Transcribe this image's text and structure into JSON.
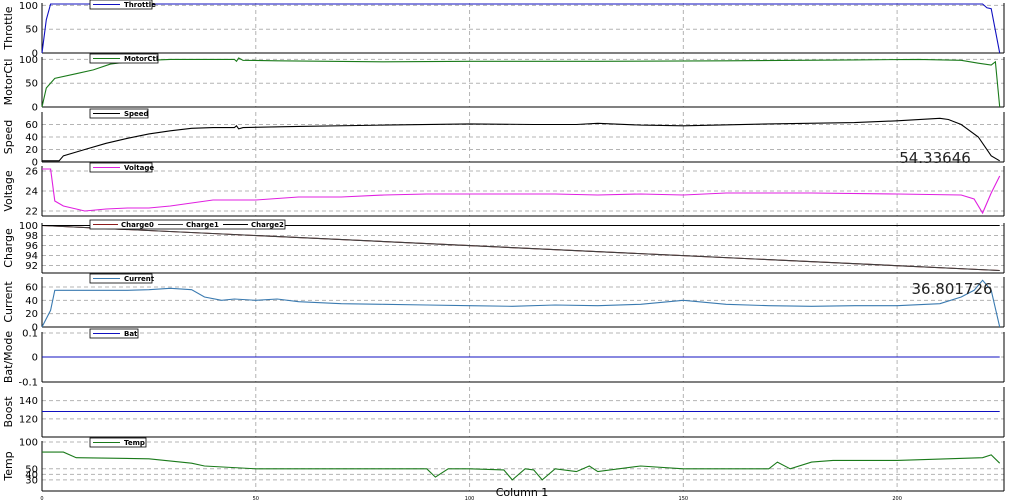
{
  "chart_data": {
    "type": "line",
    "xlabel": "Column 1",
    "xticks": [
      "0",
      "50",
      "100",
      "150",
      "200"
    ],
    "xlim": [
      0,
      225
    ],
    "panels": [
      {
        "ylabel": "Throttle",
        "ylim": [
          0,
          105
        ],
        "yticks": [
          0,
          50,
          100
        ],
        "series": [
          {
            "name": "Throttle",
            "color": "#1010c0",
            "points": [
              [
                0,
                0
              ],
              [
                1,
                70
              ],
              [
                2,
                103
              ],
              [
                20,
                103
              ],
              [
                50,
                103
              ],
              [
                100,
                103
              ],
              [
                150,
                103
              ],
              [
                200,
                103
              ],
              [
                220,
                103
              ],
              [
                221,
                95
              ],
              [
                222,
                93
              ],
              [
                224,
                0
              ]
            ]
          }
        ],
        "legend": [
          "Throttle"
        ]
      },
      {
        "ylabel": "MotorCtl",
        "ylim": [
          0,
          105
        ],
        "yticks": [
          0,
          50,
          100
        ],
        "series": [
          {
            "name": "MotorCtl",
            "color": "#1a7a1a",
            "points": [
              [
                0,
                0
              ],
              [
                1,
                40
              ],
              [
                3,
                60
              ],
              [
                8,
                70
              ],
              [
                12,
                78
              ],
              [
                16,
                90
              ],
              [
                20,
                95
              ],
              [
                25,
                98
              ],
              [
                30,
                100
              ],
              [
                40,
                100
              ],
              [
                45,
                100
              ],
              [
                45.5,
                96
              ],
              [
                46,
                103
              ],
              [
                47,
                98
              ],
              [
                55,
                97
              ],
              [
                80,
                95
              ],
              [
                100,
                96
              ],
              [
                130,
                96
              ],
              [
                160,
                97
              ],
              [
                190,
                99
              ],
              [
                205,
                100
              ],
              [
                215,
                98
              ],
              [
                219,
                92
              ],
              [
                222,
                88
              ],
              [
                223,
                95
              ],
              [
                224,
                0
              ]
            ]
          }
        ],
        "legend": [
          "MotorCtl"
        ]
      },
      {
        "ylabel": "Speed",
        "ylim": [
          0,
          80
        ],
        "yticks": [
          0,
          20,
          40,
          60
        ],
        "series": [
          {
            "name": "Speed",
            "color": "#000000",
            "points": [
              [
                0,
                2
              ],
              [
                4,
                2
              ],
              [
                5,
                10
              ],
              [
                10,
                20
              ],
              [
                15,
                30
              ],
              [
                20,
                38
              ],
              [
                25,
                45
              ],
              [
                30,
                50
              ],
              [
                35,
                54
              ],
              [
                40,
                55
              ],
              [
                45,
                55
              ],
              [
                45.5,
                58
              ],
              [
                46,
                53
              ],
              [
                47,
                55
              ],
              [
                60,
                57
              ],
              [
                80,
                59
              ],
              [
                100,
                61
              ],
              [
                115,
                60
              ],
              [
                125,
                60
              ],
              [
                130,
                62
              ],
              [
                140,
                59
              ],
              [
                150,
                58
              ],
              [
                170,
                61
              ],
              [
                190,
                63
              ],
              [
                200,
                66
              ],
              [
                210,
                70
              ],
              [
                212,
                68
              ],
              [
                215,
                60
              ],
              [
                219,
                40
              ],
              [
                222,
                10
              ],
              [
                224,
                2
              ]
            ]
          }
        ],
        "legend": [
          "Speed"
        ],
        "readout": "54.33646"
      },
      {
        "ylabel": "Voltage",
        "ylim": [
          21.5,
          26.5
        ],
        "yticks": [
          22,
          24,
          26
        ],
        "series": [
          {
            "name": "Voltage",
            "color": "#e020e0",
            "points": [
              [
                0,
                26.2
              ],
              [
                2,
                26.2
              ],
              [
                3,
                23
              ],
              [
                5,
                22.5
              ],
              [
                10,
                22.0
              ],
              [
                15,
                22.2
              ],
              [
                20,
                22.3
              ],
              [
                25,
                22.3
              ],
              [
                30,
                22.5
              ],
              [
                35,
                22.8
              ],
              [
                40,
                23.1
              ],
              [
                50,
                23.1
              ],
              [
                60,
                23.4
              ],
              [
                70,
                23.4
              ],
              [
                80,
                23.6
              ],
              [
                90,
                23.7
              ],
              [
                100,
                23.7
              ],
              [
                120,
                23.7
              ],
              [
                130,
                23.6
              ],
              [
                140,
                23.7
              ],
              [
                150,
                23.6
              ],
              [
                160,
                23.8
              ],
              [
                180,
                23.8
              ],
              [
                200,
                23.7
              ],
              [
                215,
                23.6
              ],
              [
                218,
                23.2
              ],
              [
                220,
                21.8
              ],
              [
                222,
                23.8
              ],
              [
                224,
                25.5
              ]
            ]
          }
        ],
        "legend": [
          "Voltage"
        ]
      },
      {
        "ylabel": "Charge",
        "ylim": [
          90.5,
          100.5
        ],
        "yticks": [
          92,
          94,
          96,
          98,
          100
        ],
        "series": [
          {
            "name": "Charge0",
            "color": "#8b1a1a",
            "points": [
              [
                0,
                100
              ],
              [
                224,
                91
              ]
            ]
          },
          {
            "name": "Charge1",
            "color": "#404040",
            "points": [
              [
                0,
                100
              ],
              [
                224,
                91
              ]
            ]
          },
          {
            "name": "Charge2",
            "color": "#000000",
            "points": [
              [
                0,
                100
              ],
              [
                224,
                100
              ]
            ]
          }
        ],
        "legend": [
          "Charge0",
          "Charge1",
          "Charge2"
        ]
      },
      {
        "ylabel": "Current",
        "ylim": [
          0,
          75
        ],
        "yticks": [
          0,
          20,
          40,
          60
        ],
        "series": [
          {
            "name": "Current",
            "color": "#3a7ab0",
            "points": [
              [
                0,
                0
              ],
              [
                2,
                25
              ],
              [
                3,
                55
              ],
              [
                10,
                55
              ],
              [
                20,
                55
              ],
              [
                25,
                56
              ],
              [
                30,
                58
              ],
              [
                35,
                56
              ],
              [
                38,
                45
              ],
              [
                42,
                40
              ],
              [
                45,
                42
              ],
              [
                50,
                40
              ],
              [
                55,
                42
              ],
              [
                60,
                38
              ],
              [
                70,
                35
              ],
              [
                80,
                34
              ],
              [
                90,
                33
              ],
              [
                100,
                32
              ],
              [
                110,
                31
              ],
              [
                120,
                33
              ],
              [
                130,
                32
              ],
              [
                140,
                34
              ],
              [
                150,
                40
              ],
              [
                160,
                34
              ],
              [
                170,
                32
              ],
              [
                180,
                31
              ],
              [
                190,
                32
              ],
              [
                200,
                32
              ],
              [
                210,
                35
              ],
              [
                215,
                45
              ],
              [
                218,
                55
              ],
              [
                220,
                70
              ],
              [
                222,
                55
              ],
              [
                224,
                0
              ]
            ]
          }
        ],
        "legend": [
          "Current"
        ],
        "readout": "36.801726"
      },
      {
        "ylabel": "Bat/Mode",
        "ylim": [
          -0.1,
          0.1
        ],
        "yticks": [
          -0.1,
          0,
          0.1
        ],
        "series": [
          {
            "name": "Bat",
            "color": "#1010c0",
            "points": [
              [
                0,
                0
              ],
              [
                224,
                0
              ]
            ]
          }
        ],
        "legend": [
          "Bat"
        ]
      },
      {
        "ylabel": "Boost",
        "ylim": [
          100,
          155
        ],
        "yticks": [
          120,
          140
        ],
        "series": [
          {
            "name": "Boost",
            "color": "#1010c0",
            "points": [
              [
                0,
                128
              ],
              [
                224,
                128
              ]
            ]
          }
        ],
        "legend": []
      },
      {
        "ylabel": "Temp",
        "ylim": [
          10,
          100
        ],
        "yticks": [
          100,
          50,
          40,
          30
        ],
        "series": [
          {
            "name": "Temp",
            "color": "#1a7a1a",
            "points": [
              [
                0,
                80
              ],
              [
                5,
                80
              ],
              [
                8,
                70
              ],
              [
                25,
                68
              ],
              [
                35,
                60
              ],
              [
                38,
                55
              ],
              [
                50,
                50
              ],
              [
                90,
                50
              ],
              [
                92,
                35
              ],
              [
                95,
                50
              ],
              [
                100,
                50
              ],
              [
                108,
                48
              ],
              [
                110,
                30
              ],
              [
                113,
                50
              ],
              [
                115,
                48
              ],
              [
                117,
                30
              ],
              [
                120,
                50
              ],
              [
                125,
                45
              ],
              [
                128,
                55
              ],
              [
                130,
                45
              ],
              [
                140,
                55
              ],
              [
                150,
                50
              ],
              [
                170,
                50
              ],
              [
                172,
                62
              ],
              [
                175,
                50
              ],
              [
                180,
                62
              ],
              [
                185,
                65
              ],
              [
                200,
                65
              ],
              [
                220,
                70
              ],
              [
                222,
                75
              ],
              [
                224,
                60
              ]
            ]
          }
        ],
        "legend": [
          "Temp"
        ]
      }
    ]
  }
}
